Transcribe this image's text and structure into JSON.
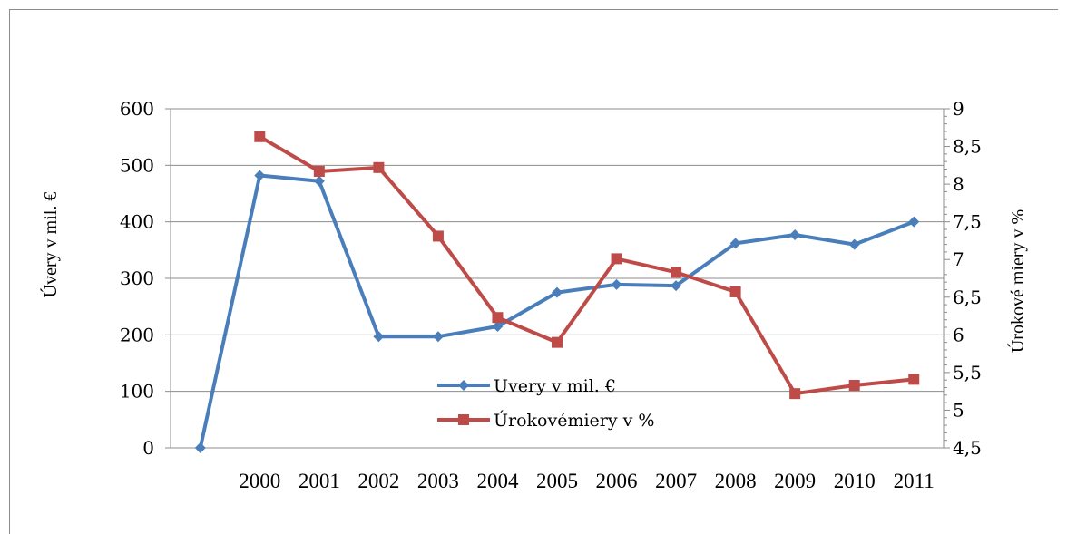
{
  "chart_data": {
    "type": "line",
    "categories": [
      "",
      "2000",
      "2001",
      "2002",
      "2003",
      "2004",
      "2005",
      "2006",
      "2007",
      "2008",
      "2009",
      "2010",
      "2011"
    ],
    "ylabel_left": "Úvery v mil. €",
    "ylabel_right": "Úrokové miery v %",
    "ylim_left": [
      0,
      600
    ],
    "ylim_right": [
      4.5,
      9
    ],
    "yticks_left": [
      "0",
      "100",
      "200",
      "300",
      "400",
      "500",
      "600"
    ],
    "yticks_right": [
      "4,5",
      "5",
      "5,5",
      "6",
      "6,5",
      "7",
      "7,5",
      "8",
      "8,5",
      "9"
    ],
    "grid": true,
    "legend_position": "center",
    "series": [
      {
        "name": "Uvery v mil. €",
        "axis": "left",
        "color": "#4a7ebb",
        "marker": "diamond",
        "values": [
          0,
          482,
          472,
          197,
          197,
          215,
          275,
          289,
          287,
          362,
          377,
          360,
          400
        ]
      },
      {
        "name": "Úrokovémiery  v %",
        "axis": "right",
        "color": "#be4b48",
        "marker": "square",
        "values": [
          null,
          8.63,
          8.17,
          8.22,
          7.31,
          6.23,
          5.9,
          7.01,
          6.83,
          6.57,
          5.22,
          5.33,
          5.41
        ]
      }
    ]
  }
}
